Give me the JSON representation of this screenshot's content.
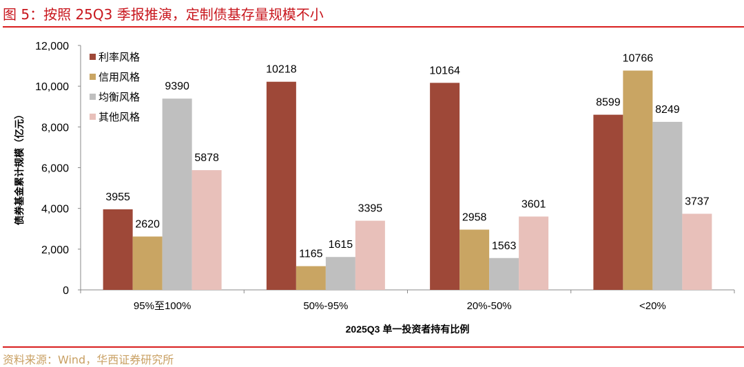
{
  "title": "图 5：按照 25Q3 季报推演，定制债基存量规模不小",
  "source": "资料来源：Wind，华西证券研究所",
  "chart_data": {
    "type": "bar",
    "title": "",
    "xlabel": "2025Q3 单一投资者持有比例",
    "ylabel": "债券基金累计规模（亿元）",
    "ylim": [
      0,
      12000
    ],
    "yticks": [
      0,
      2000,
      4000,
      6000,
      8000,
      10000,
      12000
    ],
    "ytick_labels": [
      "0",
      "2,000",
      "4,000",
      "6,000",
      "8,000",
      "10,000",
      "12,000"
    ],
    "grid": false,
    "legend_position": "top-left",
    "categories": [
      "95%至100%",
      "50%-95%",
      "20%-50%",
      "<20%"
    ],
    "series": [
      {
        "name": "利率风格",
        "color": "#9e4838",
        "values": [
          3955,
          10218,
          10164,
          8599
        ]
      },
      {
        "name": "信用风格",
        "color": "#c9a563",
        "values": [
          2620,
          1165,
          2958,
          10766
        ]
      },
      {
        "name": "均衡风格",
        "color": "#bfbfbf",
        "values": [
          9390,
          1615,
          1563,
          8249
        ]
      },
      {
        "name": "其他风格",
        "color": "#e8c0ba",
        "values": [
          5878,
          3395,
          3601,
          3737
        ]
      }
    ]
  }
}
